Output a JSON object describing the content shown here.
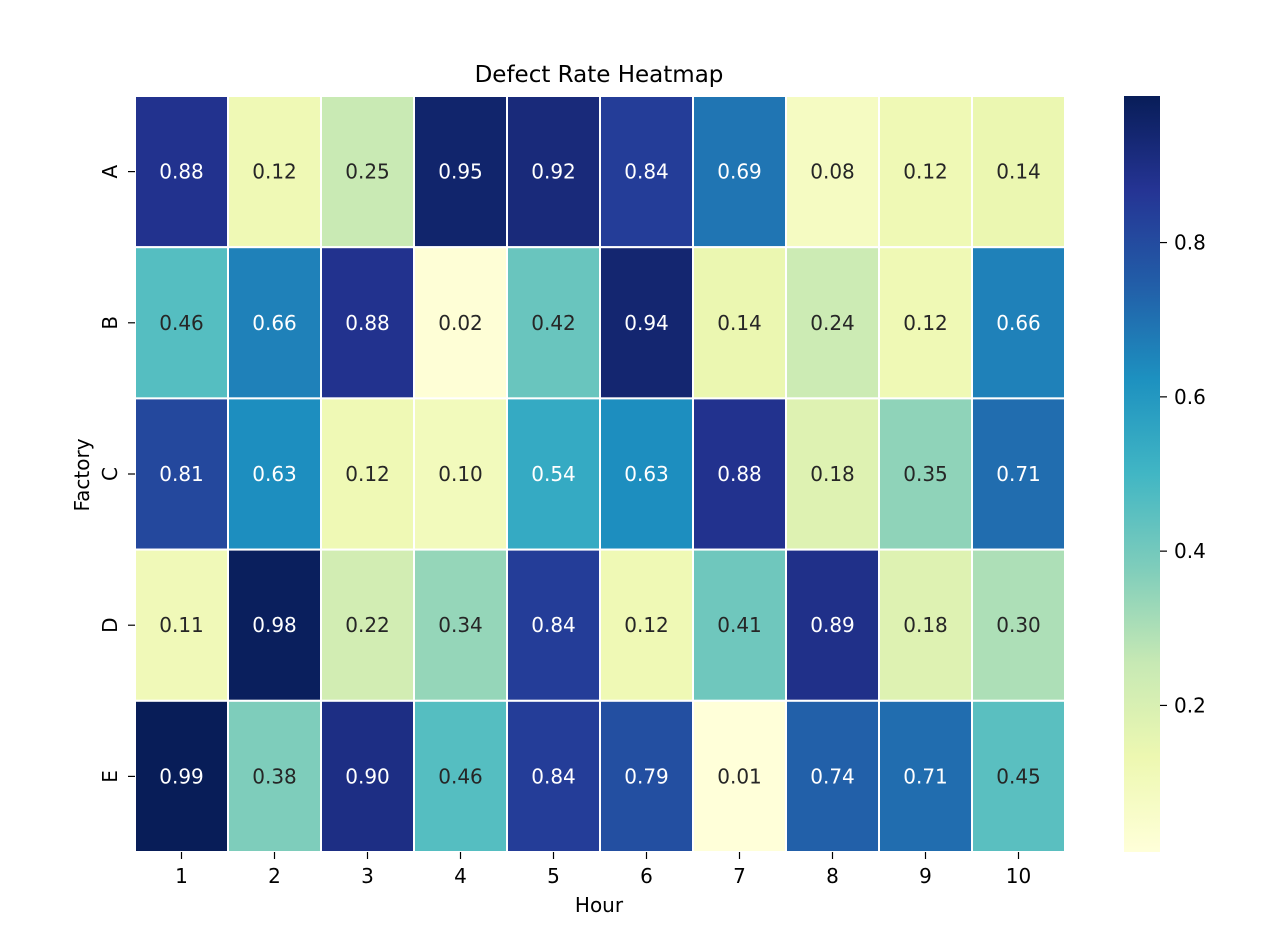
{
  "chart_data": {
    "type": "heatmap",
    "title": "Defect Rate Heatmap",
    "xlabel": "Hour",
    "ylabel": "Factory",
    "x_categories": [
      "1",
      "2",
      "3",
      "4",
      "5",
      "6",
      "7",
      "8",
      "9",
      "10"
    ],
    "y_categories": [
      "A",
      "B",
      "C",
      "D",
      "E"
    ],
    "values": [
      [
        0.88,
        0.12,
        0.25,
        0.95,
        0.92,
        0.84,
        0.69,
        0.08,
        0.12,
        0.14
      ],
      [
        0.46,
        0.66,
        0.88,
        0.02,
        0.42,
        0.94,
        0.14,
        0.24,
        0.12,
        0.66
      ],
      [
        0.81,
        0.63,
        0.12,
        0.1,
        0.54,
        0.63,
        0.88,
        0.18,
        0.35,
        0.71
      ],
      [
        0.11,
        0.98,
        0.22,
        0.34,
        0.84,
        0.12,
        0.41,
        0.89,
        0.18,
        0.3
      ],
      [
        0.99,
        0.38,
        0.9,
        0.46,
        0.84,
        0.79,
        0.01,
        0.74,
        0.71,
        0.45
      ]
    ],
    "value_labels": [
      [
        "0.88",
        "0.12",
        "0.25",
        "0.95",
        "0.92",
        "0.84",
        "0.69",
        "0.08",
        "0.12",
        "0.14"
      ],
      [
        "0.46",
        "0.66",
        "0.88",
        "0.02",
        "0.42",
        "0.94",
        "0.14",
        "0.24",
        "0.12",
        "0.66"
      ],
      [
        "0.81",
        "0.63",
        "0.12",
        "0.10",
        "0.54",
        "0.63",
        "0.88",
        "0.18",
        "0.35",
        "0.71"
      ],
      [
        "0.11",
        "0.98",
        "0.22",
        "0.34",
        "0.84",
        "0.12",
        "0.41",
        "0.89",
        "0.18",
        "0.30"
      ],
      [
        "0.99",
        "0.38",
        "0.90",
        "0.46",
        "0.84",
        "0.79",
        "0.01",
        "0.74",
        "0.71",
        "0.45"
      ]
    ],
    "colormap": "YlGnBu",
    "color_stops": [
      "#ffffd9",
      "#edf8b1",
      "#c7e9b4",
      "#7fcdbb",
      "#41b6c4",
      "#1d91c0",
      "#225ea8",
      "#253494",
      "#081d58"
    ],
    "vmin": 0.01,
    "vmax": 0.99,
    "colorbar_ticks": [
      0.2,
      0.4,
      0.6,
      0.8
    ],
    "colorbar_tick_labels": [
      "0.2",
      "0.4",
      "0.6",
      "0.8"
    ],
    "light_text_color": "#ffffff",
    "dark_text_color": "#262626",
    "grid_line_color": "#ffffff"
  }
}
